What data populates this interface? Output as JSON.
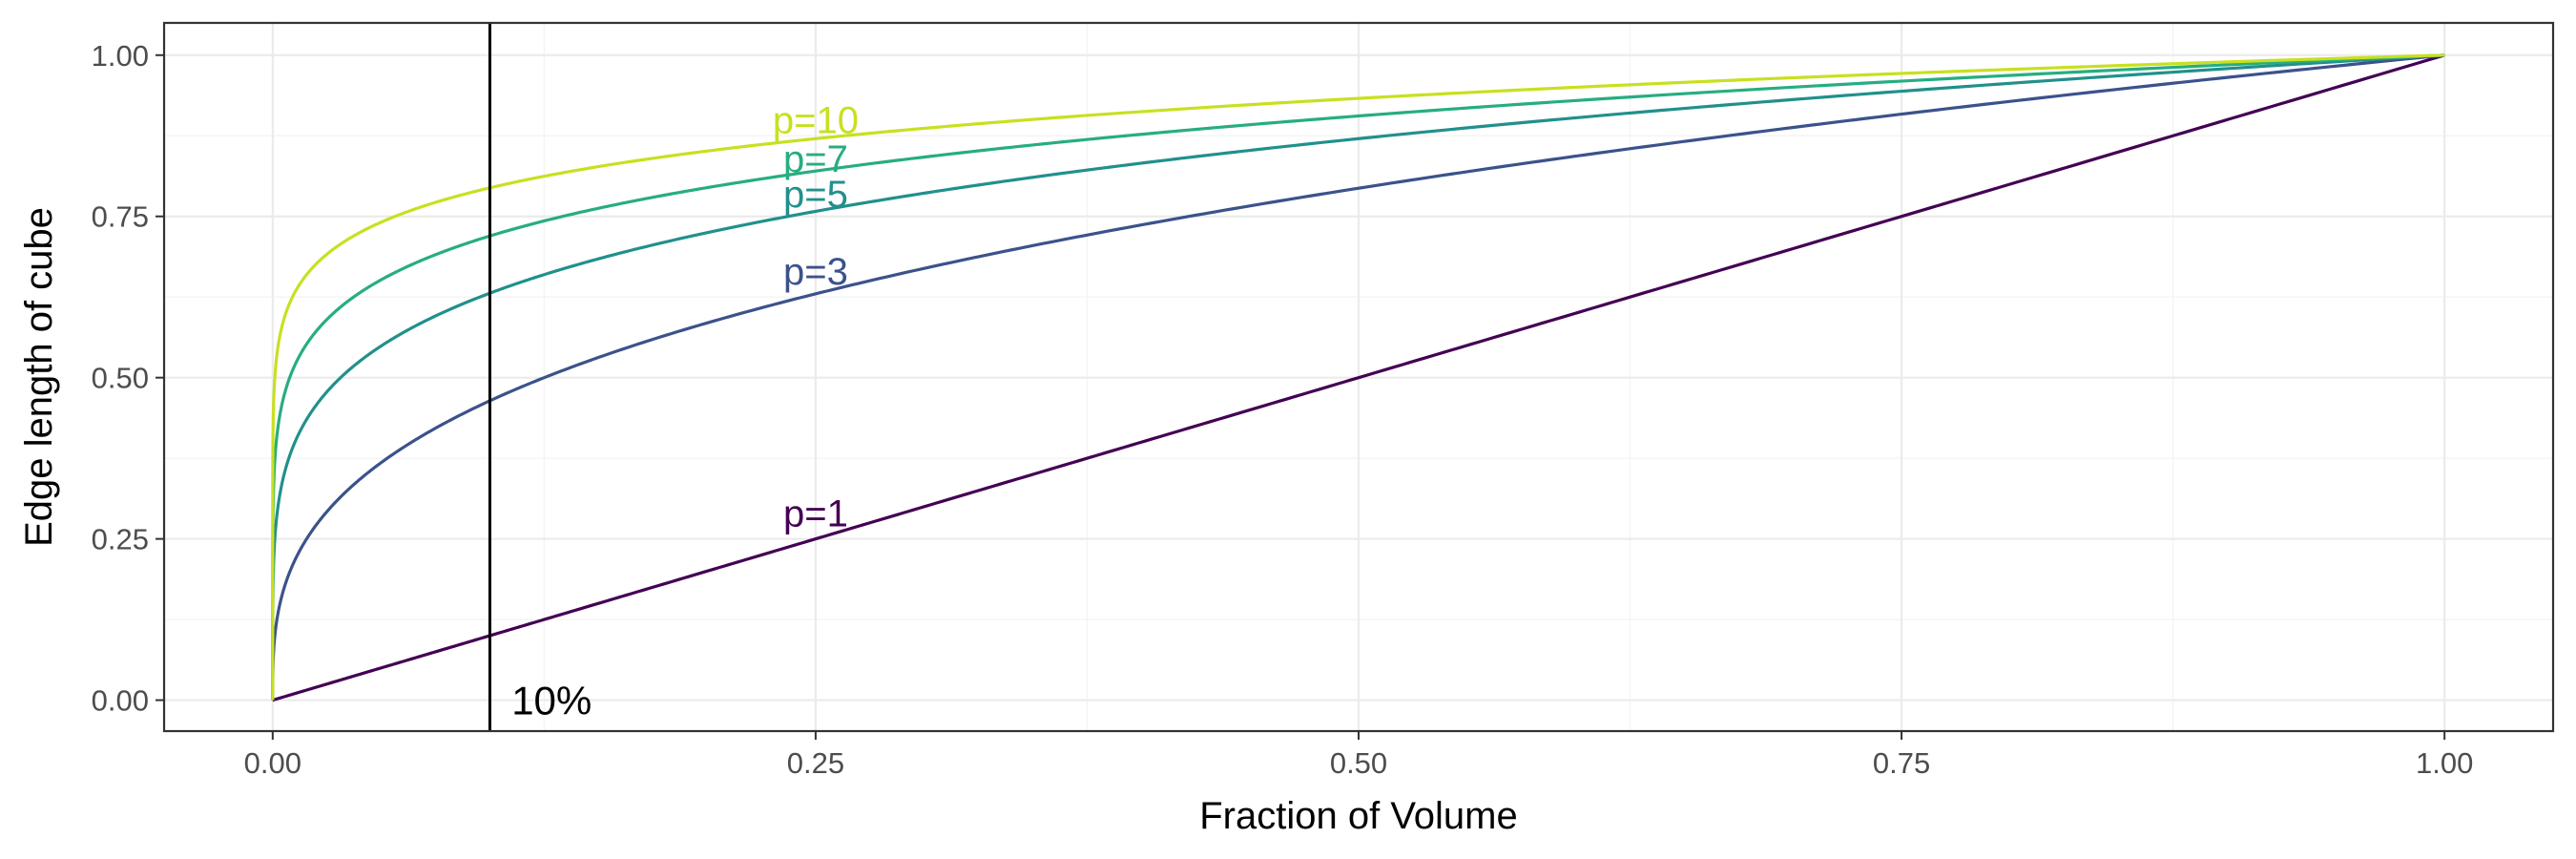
{
  "chart_data": {
    "type": "line",
    "title": "",
    "xlabel": "Fraction of Volume",
    "ylabel": "Edge length of cube",
    "xlim": [
      -0.05,
      1.05
    ],
    "ylim": [
      -0.048,
      1.05
    ],
    "x_ticks": [
      {
        "value": 0.0,
        "label": "0.00"
      },
      {
        "value": 0.25,
        "label": "0.25"
      },
      {
        "value": 0.5,
        "label": "0.50"
      },
      {
        "value": 0.75,
        "label": "0.75"
      },
      {
        "value": 1.0,
        "label": "1.00"
      }
    ],
    "y_ticks": [
      {
        "value": 0.0,
        "label": "0.00"
      },
      {
        "value": 0.25,
        "label": "0.25"
      },
      {
        "value": 0.5,
        "label": "0.50"
      },
      {
        "value": 0.75,
        "label": "0.75"
      },
      {
        "value": 1.0,
        "label": "1.00"
      }
    ],
    "grid": true,
    "legend": "none",
    "series": [
      {
        "name": "p=1",
        "p": 1,
        "color": "#440154",
        "x": [
          0,
          0.1,
          0.25,
          0.5,
          0.75,
          1.0
        ],
        "y": [
          0,
          0.1,
          0.25,
          0.5,
          0.75,
          1.0
        ]
      },
      {
        "name": "p=3",
        "p": 3,
        "color": "#3b528b",
        "x": [
          0,
          0.1,
          0.25,
          0.5,
          0.75,
          1.0
        ],
        "y": [
          0,
          0.464,
          0.63,
          0.794,
          0.909,
          1.0
        ]
      },
      {
        "name": "p=5",
        "p": 5,
        "color": "#21908c",
        "x": [
          0,
          0.1,
          0.25,
          0.5,
          0.75,
          1.0
        ],
        "y": [
          0,
          0.631,
          0.758,
          0.871,
          0.944,
          1.0
        ]
      },
      {
        "name": "p=7",
        "p": 7,
        "color": "#27ad81",
        "x": [
          0,
          0.1,
          0.25,
          0.5,
          0.75,
          1.0
        ],
        "y": [
          0,
          0.72,
          0.82,
          0.906,
          0.96,
          1.0
        ]
      },
      {
        "name": "p=10",
        "p": 10,
        "color": "#c8e020",
        "x": [
          0,
          0.1,
          0.25,
          0.5,
          0.75,
          1.0
        ],
        "y": [
          0,
          0.794,
          0.871,
          0.933,
          0.972,
          1.0
        ]
      }
    ],
    "series_labels": [
      {
        "text": "p=1",
        "series": 0,
        "x": 0.25,
        "y": 0.29
      },
      {
        "text": "p=3",
        "series": 1,
        "x": 0.25,
        "y": 0.665
      },
      {
        "text": "p=5",
        "series": 2,
        "x": 0.25,
        "y": 0.785
      },
      {
        "text": "p=7",
        "series": 3,
        "x": 0.25,
        "y": 0.84
      },
      {
        "text": "p=10",
        "series": 4,
        "x": 0.25,
        "y": 0.9
      }
    ],
    "vline": {
      "x": 0.1,
      "color": "#000000"
    },
    "annotation": {
      "text": "10%",
      "x": 0.11,
      "y": 0.0
    }
  }
}
